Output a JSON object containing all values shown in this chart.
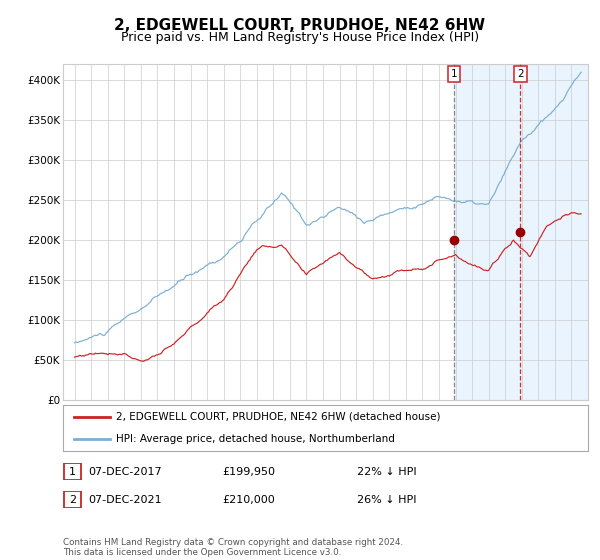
{
  "title": "2, EDGEWELL COURT, PRUDHOE, NE42 6HW",
  "subtitle": "Price paid vs. HM Land Registry's House Price Index (HPI)",
  "ylim": [
    0,
    420000
  ],
  "yticks": [
    0,
    50000,
    100000,
    150000,
    200000,
    250000,
    300000,
    350000,
    400000
  ],
  "ytick_labels": [
    "£0",
    "£50K",
    "£100K",
    "£150K",
    "£200K",
    "£250K",
    "£300K",
    "£350K",
    "£400K"
  ],
  "hpi_color": "#7bafd4",
  "price_color": "#cc2222",
  "marker_color": "#990000",
  "vline1_color": "#888888",
  "vline2_color": "#cc3333",
  "shade_color": "#ddeeff",
  "purchase1_date": 2017.92,
  "purchase1_price": 199950,
  "purchase2_date": 2021.92,
  "purchase2_price": 210000,
  "legend_line1": "2, EDGEWELL COURT, PRUDHOE, NE42 6HW (detached house)",
  "legend_line2": "HPI: Average price, detached house, Northumberland",
  "table_data": [
    {
      "num": "1",
      "date": "07-DEC-2017",
      "price": "£199,950",
      "hpi": "22% ↓ HPI"
    },
    {
      "num": "2",
      "date": "07-DEC-2021",
      "price": "£210,000",
      "hpi": "26% ↓ HPI"
    }
  ],
  "footer": "Contains HM Land Registry data © Crown copyright and database right 2024.\nThis data is licensed under the Open Government Licence v3.0.",
  "background_color": "#ffffff",
  "grid_color": "#cccccc",
  "title_fontsize": 11,
  "subtitle_fontsize": 9,
  "tick_fontsize": 7.5,
  "xlim_left": 1994.3,
  "xlim_right": 2026.0
}
